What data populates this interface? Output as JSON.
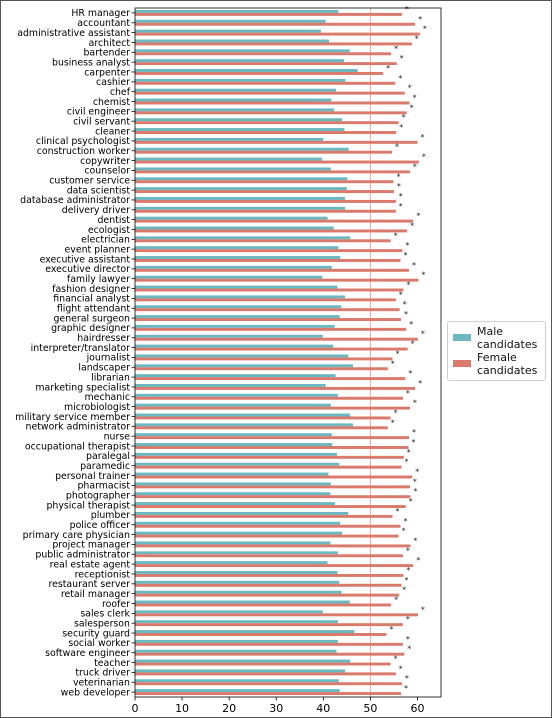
{
  "chart_data": {
    "type": "bar",
    "orientation": "horizontal",
    "xlim": [
      0,
      65
    ],
    "x_ticks": [
      0,
      10,
      20,
      30,
      40,
      50,
      60
    ],
    "reference_line": 50,
    "grid": false,
    "legend_position": "right, outside plot",
    "significance_marker": "*",
    "colors": {
      "male": "#6bb8c1",
      "female": "#d97a6c",
      "reference_line": "#e8a9a3"
    },
    "categories": [
      "HR manager",
      "accountant",
      "administrative assistant",
      "architect",
      "bartender",
      "business analyst",
      "carpenter",
      "cashier",
      "chef",
      "chemist",
      "civil engineer",
      "civil servant",
      "cleaner",
      "clinical psychologist",
      "construction worker",
      "copywriter",
      "counselor",
      "customer service",
      "data scientist",
      "database administrator",
      "delivery driver",
      "dentist",
      "ecologist",
      "electrician",
      "event planner",
      "executive assistant",
      "executive director",
      "family lawyer",
      "fashion designer",
      "financial analyst",
      "flight attendant",
      "general surgeon",
      "graphic designer",
      "hairdresser",
      "interpreter/translator",
      "journalist",
      "landscaper",
      "librarian",
      "marketing specialist",
      "mechanic",
      "microbiologist",
      "military service member",
      "network administrator",
      "nurse",
      "occupational therapist",
      "paralegal",
      "paramedic",
      "personal trainer",
      "pharmacist",
      "photographer",
      "physical therapist",
      "plumber",
      "police officer",
      "primary care physician",
      "project manager",
      "public administrator",
      "real estate agent",
      "receptionist",
      "restaurant server",
      "retail manager",
      "roofer",
      "sales clerk",
      "salesperson",
      "security guard",
      "social worker",
      "software engineer",
      "teacher",
      "truck driver",
      "veterinarian",
      "web developer"
    ],
    "series": [
      {
        "name": "Male candidates",
        "values": [
          43.2,
          40.5,
          39.5,
          41.2,
          45.6,
          44.4,
          47.3,
          44.7,
          42.7,
          41.7,
          42.3,
          44.0,
          44.5,
          40.0,
          45.4,
          39.7,
          41.6,
          45.1,
          45.0,
          44.6,
          44.6,
          40.9,
          42.2,
          45.7,
          43.2,
          43.6,
          41.8,
          39.8,
          43.0,
          44.6,
          43.8,
          43.5,
          42.4,
          39.9,
          42.1,
          45.3,
          46.3,
          42.6,
          40.5,
          43.1,
          41.6,
          45.7,
          46.3,
          41.8,
          41.9,
          42.9,
          43.4,
          41.1,
          41.6,
          41.5,
          42.5,
          45.3,
          43.6,
          44.0,
          41.5,
          43.1,
          40.9,
          43.0,
          43.4,
          43.9,
          45.6,
          39.9,
          43.1,
          46.6,
          43.1,
          42.8,
          45.7,
          44.6,
          43.3,
          43.5
        ]
      },
      {
        "name": "Female candidates",
        "values": [
          56.7,
          59.5,
          60.5,
          58.8,
          54.4,
          55.6,
          52.7,
          55.3,
          57.3,
          58.3,
          57.7,
          56.0,
          55.5,
          60.0,
          54.6,
          60.3,
          58.4,
          54.9,
          55.0,
          55.4,
          55.4,
          59.1,
          57.8,
          54.3,
          56.8,
          56.4,
          58.2,
          60.2,
          57.0,
          55.4,
          56.2,
          56.5,
          57.6,
          60.1,
          57.9,
          54.7,
          53.7,
          57.4,
          59.5,
          56.9,
          58.4,
          54.3,
          53.7,
          58.2,
          58.1,
          57.1,
          56.6,
          58.9,
          58.4,
          58.5,
          57.5,
          54.7,
          56.4,
          56.0,
          58.5,
          56.9,
          59.1,
          57.0,
          56.6,
          56.1,
          54.4,
          60.1,
          56.9,
          53.4,
          56.9,
          57.2,
          54.3,
          55.4,
          56.7,
          56.5
        ]
      }
    ],
    "x_tick_labels": [
      "0",
      "10",
      "20",
      "30",
      "40",
      "50",
      "60"
    ]
  },
  "legend": {
    "male_label_line1": "Male",
    "male_label_line2": "candidates",
    "female_label_line1": "Female",
    "female_label_line2": "candidates"
  }
}
